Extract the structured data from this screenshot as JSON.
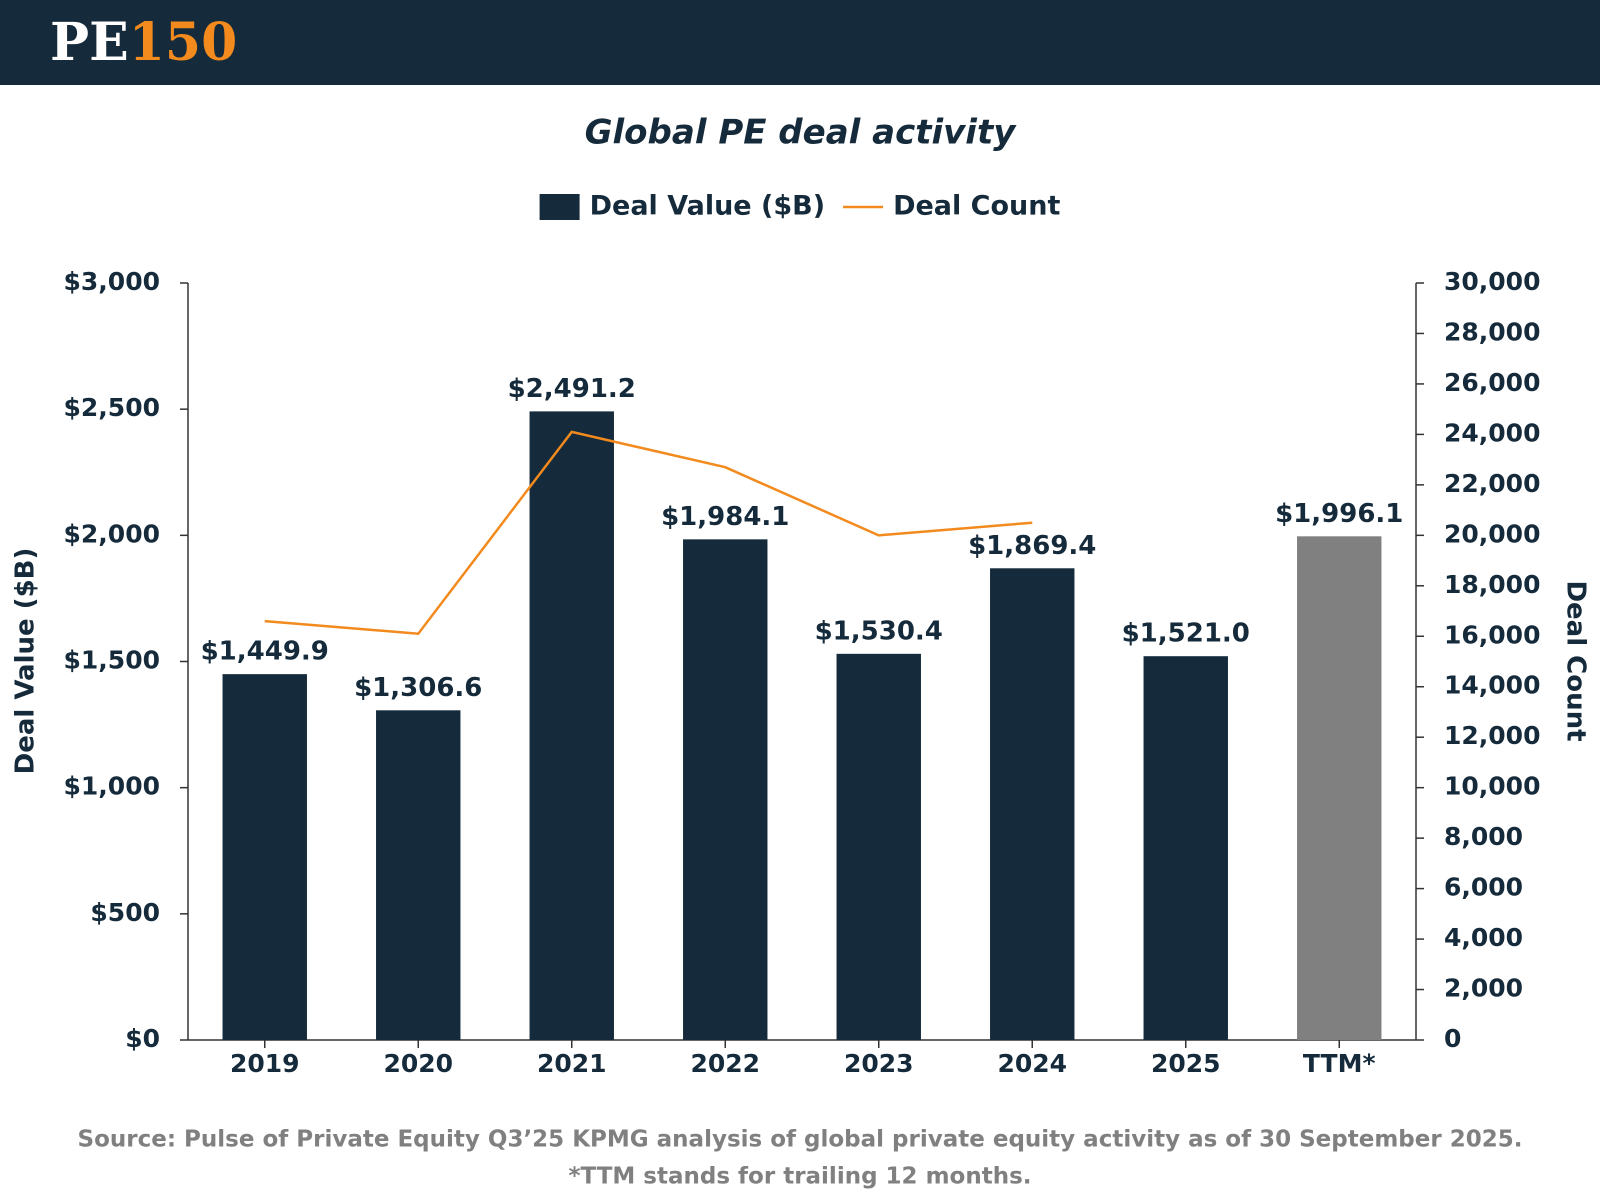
{
  "brand": [
    "PE",
    "150"
  ],
  "chart_data": {
    "type": "bar",
    "title": "Global PE deal activity",
    "y_label": "Deal Value ($B)",
    "y2_label": "Deal Count",
    "categories": [
      "2019",
      "2020",
      "2021",
      "2022",
      "2023",
      "2024",
      "2025",
      "TTM*"
    ],
    "series": [
      {
        "name": "Deal Value ($B)",
        "type": "bar",
        "color": "#152a3a",
        "colors": [
          "#152a3a",
          "#152a3a",
          "#152a3a",
          "#152a3a",
          "#152a3a",
          "#152a3a",
          "#152a3a",
          "#808080"
        ],
        "values": [
          1449.9,
          1306.6,
          2491.2,
          1984.1,
          1530.4,
          1869.4,
          1521.0,
          1996.1
        ],
        "value_labels": [
          "$1,449.9",
          "$1,306.6",
          "$2,491.2",
          "$1,984.1",
          "$1,530.4",
          "$1,869.4",
          "$1,521.0",
          "$1,996.1"
        ]
      },
      {
        "name": "Deal Count",
        "type": "line",
        "color": "#f28a1e",
        "axis": "y2",
        "values": [
          16600,
          16100,
          24100,
          22700,
          20000,
          20500,
          null,
          null
        ]
      }
    ],
    "ylim": [
      0,
      3000
    ],
    "yticks": [
      {
        "value": 0,
        "label": "$0"
      },
      {
        "value": 500,
        "label": "$500"
      },
      {
        "value": 1000,
        "label": "$1,000"
      },
      {
        "value": 1500,
        "label": "$1,500"
      },
      {
        "value": 2000,
        "label": "$2,000"
      },
      {
        "value": 2500,
        "label": "$2,500"
      },
      {
        "value": 3000,
        "label": "$3,000"
      }
    ],
    "y2lim": [
      0,
      30000
    ],
    "y2ticks": [
      0,
      {
        "value": 2000,
        "label": "2,000"
      },
      {
        "value": 4000,
        "label": "4,000"
      },
      {
        "value": 6000,
        "label": "6,000"
      },
      {
        "value": 8000,
        "label": "8,000"
      },
      {
        "value": 10000,
        "label": "10,000"
      },
      {
        "value": 12000,
        "label": "12,000"
      },
      {
        "value": 14000,
        "label": "14,000"
      },
      {
        "value": 16000,
        "label": "16,000"
      },
      {
        "value": 18000,
        "label": "18,000"
      },
      {
        "value": 20000,
        "label": "20,000"
      },
      {
        "value": 22000,
        "label": "22,000"
      },
      {
        "value": 24000,
        "label": "24,000"
      },
      {
        "value": 26000,
        "label": "26,000"
      },
      {
        "value": 28000,
        "label": "28,000"
      },
      {
        "value": 30000,
        "label": "30,000"
      }
    ],
    "grid": false,
    "legend": "top",
    "source": "Source: Pulse of Private Equity Q3’25 KPMG analysis of global private equity activity as of 30 September 2025.",
    "note": "*TTM stands for trailing 12 months."
  }
}
